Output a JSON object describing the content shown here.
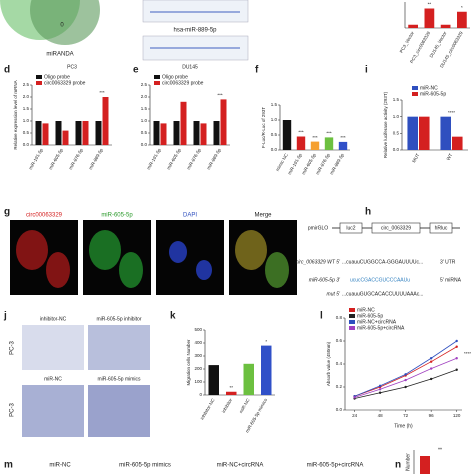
{
  "top": {
    "venn_label": "miRANDA",
    "venn_count": "0",
    "track_label": "hsa-miR-889-5p"
  },
  "panel_letters": {
    "d": "d",
    "e": "e",
    "f": "f",
    "i": "i",
    "g": "g",
    "h": "h",
    "j": "j",
    "k": "k",
    "l": "l",
    "m": "m",
    "n": "n"
  },
  "g": {
    "labels": [
      "circ00063329",
      "miR-605-5p",
      "DAPI",
      "Merge"
    ]
  },
  "h": {
    "vector": "pmirGLO",
    "luc": "luc2",
    "insert": "circ_0063329",
    "rluc": "hRluc",
    "wt": "circ_0063329 WT 5'",
    "wt_seq": "...cuauuCUGGCCA-GGGAUUUUc...",
    "utr": "3' UTR",
    "mirna": "miR-605-5p 3'",
    "mirna_seq": "ucucCGACCGUCCCAAUu",
    "mirna_end": "5' miRNA",
    "mut": "mut 5'",
    "mut_seq": "...cuauuGUGCACACCUUUUAAAc..."
  },
  "j": {
    "cols": [
      "inhibitor-NC",
      "miR-605-5p inhibitor"
    ],
    "cols2": [
      "miR-NC",
      "miR-605-5p mimics"
    ],
    "row_label": "PC-3"
  },
  "m": {
    "labels": [
      "miR-NC",
      "miR-605-5p mimics",
      "miR-NC+circRNA",
      "miR-605-5p+circRNA"
    ]
  },
  "n": {
    "ylabel": "Number",
    "annotation": "**"
  },
  "chart_data": [
    {
      "type": "bar",
      "categories": [
        "PC3_Vector",
        "PC3_circ0063329",
        "DU145_Vector",
        "DU145_circ0063329"
      ],
      "values": [
        1,
        6,
        1,
        5
      ],
      "colors": [
        "#d42020",
        "#d42020",
        "#d42020",
        "#d42020"
      ],
      "ylim": [
        0,
        8
      ],
      "annotations": [
        {
          "text": "**",
          "category": "PC3_circ0063329"
        },
        {
          "text": "*",
          "category": "DU145_circ0063329"
        }
      ]
    },
    {
      "type": "bar",
      "title": "PC3",
      "ylabel": "Relative expression level of mRNA",
      "categories": [
        "miR-191-5p",
        "miR-605-5p",
        "miR-876-5p",
        "miR-889-5p"
      ],
      "series": [
        {
          "name": "Oligo probe",
          "color": "#111111",
          "values": [
            1,
            1,
            1,
            1
          ]
        },
        {
          "name": "circ0063329 probe",
          "color": "#d42020",
          "values": [
            0.9,
            0.6,
            1.0,
            2.0
          ]
        }
      ],
      "ylim": [
        0,
        2.5
      ],
      "yticks": [
        {
          "value": 0,
          "label": "0.0"
        },
        {
          "value": 0.5,
          "label": "0.5"
        },
        {
          "value": 1,
          "label": "1.0"
        },
        {
          "value": 1.5,
          "label": "1.5"
        },
        {
          "value": 2,
          "label": "2.0"
        },
        {
          "value": 2.5,
          "label": "2.5"
        }
      ],
      "legend": "top-left",
      "annotations": [
        {
          "text": "***",
          "category": "miR-889-5p"
        }
      ]
    },
    {
      "type": "bar",
      "title": "DU145",
      "categories": [
        "miR-191-5p",
        "miR-605-5p",
        "miR-876-5p",
        "miR-889-5p"
      ],
      "series": [
        {
          "name": "Oligo probe",
          "color": "#111111",
          "values": [
            1,
            1,
            1,
            1
          ]
        },
        {
          "name": "circ0063329 probe",
          "color": "#d42020",
          "values": [
            0.9,
            1.8,
            0.9,
            1.9
          ]
        }
      ],
      "ylim": [
        0,
        2.5
      ],
      "yticks": [
        {
          "value": 0,
          "label": "0.0"
        },
        {
          "value": 0.5,
          "label": "0.5"
        },
        {
          "value": 1,
          "label": "1.0"
        },
        {
          "value": 1.5,
          "label": "1.5"
        },
        {
          "value": 2,
          "label": "2.0"
        },
        {
          "value": 2.5,
          "label": "2.5"
        }
      ],
      "legend": "top-left",
      "annotations": [
        {
          "text": "***",
          "category": "miR-889-5p"
        }
      ]
    },
    {
      "type": "bar",
      "ylabel": "F-Luc/R-Luc of 293T",
      "categories": [
        "mimic NC",
        "miR-191-5p",
        "miR-605-5p",
        "miR-876-5p",
        "miR-889-5p"
      ],
      "values": [
        1.0,
        0.45,
        0.28,
        0.42,
        0.27
      ],
      "colors": [
        "#111111",
        "#d42020",
        "#f5a030",
        "#6cc040",
        "#3050c8"
      ],
      "ylim": [
        0,
        1.5
      ],
      "yticks": [
        {
          "value": 0,
          "label": "0.0"
        },
        {
          "value": 0.5,
          "label": "0.5"
        },
        {
          "value": 1,
          "label": "1.0"
        },
        {
          "value": 1.5,
          "label": "1.5"
        }
      ],
      "annotations": [
        {
          "text": "***",
          "category": "miR-191-5p"
        },
        {
          "text": "***",
          "category": "miR-605-5p"
        },
        {
          "text": "***",
          "category": "miR-876-5p"
        },
        {
          "text": "***",
          "category": "miR-889-5p"
        }
      ]
    },
    {
      "type": "bar",
      "ylabel": "Relative luciferase activity (293T)",
      "categories": [
        "MUT",
        "WT"
      ],
      "series": [
        {
          "name": "miR-NC",
          "color": "#2f4fbf",
          "values": [
            1,
            1
          ]
        },
        {
          "name": "miR-605-5p",
          "color": "#d42020",
          "values": [
            1,
            0.4
          ]
        }
      ],
      "ylim": [
        0,
        1.5
      ],
      "yticks": [
        {
          "value": 0,
          "label": "0.0"
        },
        {
          "value": 0.5,
          "label": "0.5"
        },
        {
          "value": 1,
          "label": "1.0"
        },
        {
          "value": 1.5,
          "label": "1.5"
        }
      ],
      "legend": "top",
      "annotations": [
        {
          "text": "****",
          "category": "WT"
        }
      ]
    },
    {
      "type": "bar",
      "ylabel": "Migration cells Number",
      "categories": [
        "inhibitor-NC",
        "inhibitor",
        "miR-NC",
        "miR-605-5p mimics"
      ],
      "values": [
        230,
        25,
        240,
        380
      ],
      "colors": [
        "#111111",
        "#d42020",
        "#6cc040",
        "#3050c8"
      ],
      "ylim": [
        0,
        500
      ],
      "yticks": [
        0,
        100,
        200,
        300,
        400,
        500
      ],
      "annotations": [
        {
          "text": "**",
          "category": "inhibitor"
        },
        {
          "text": "*",
          "category": "miR-605-5p mimics"
        }
      ]
    },
    {
      "type": "line",
      "ylabel": "Absorb value (450nm)",
      "xlabel": "Time (h)",
      "x": [
        24,
        48,
        72,
        96,
        120
      ],
      "xlim": [
        15,
        125
      ],
      "xticks": [
        24,
        48,
        72,
        96,
        120
      ],
      "series": [
        {
          "name": "miR-NC",
          "color": "#d42020",
          "values": [
            0.12,
            0.2,
            0.3,
            0.42,
            0.55
          ]
        },
        {
          "name": "miR-605-5p",
          "color": "#222222",
          "values": [
            0.1,
            0.15,
            0.2,
            0.27,
            0.35
          ]
        },
        {
          "name": "miR-NC+circRNA",
          "color": "#2f4fbf",
          "values": [
            0.12,
            0.21,
            0.31,
            0.45,
            0.6
          ]
        },
        {
          "name": "miR-605-5p+circRNA",
          "color": "#a040c0",
          "values": [
            0.11,
            0.18,
            0.26,
            0.36,
            0.45
          ]
        }
      ],
      "ylim": [
        0,
        0.8
      ],
      "yticks": [
        {
          "value": 0,
          "label": "0.0"
        },
        {
          "value": 0.2,
          "label": "0.2"
        },
        {
          "value": 0.4,
          "label": "0.4"
        },
        {
          "value": 0.6,
          "label": "0.6"
        },
        {
          "value": 0.8,
          "label": "0.8"
        }
      ],
      "legend": "top-left",
      "annotation": "****"
    }
  ]
}
